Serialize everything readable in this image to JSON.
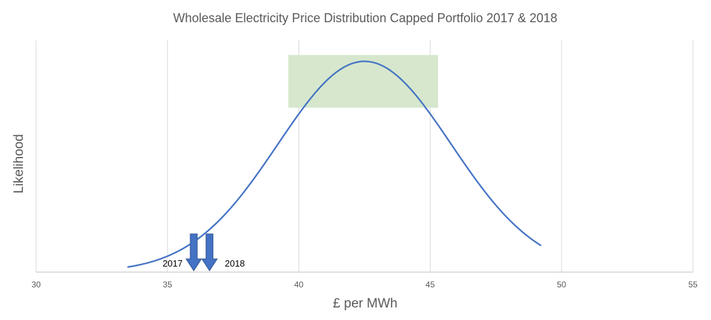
{
  "chart_data": {
    "type": "line",
    "title": "Wholesale Electricity Price Distribution Capped Portfolio 2017 & 2018",
    "xlabel": "£ per MWh",
    "ylabel": "Likelihood",
    "xlim": [
      30,
      55
    ],
    "ylim": [
      0,
      1.1
    ],
    "x_ticks": [
      30,
      35,
      40,
      45,
      50,
      55
    ],
    "x_tick_labels": [
      "30",
      "35",
      "40",
      "45",
      "50",
      "55"
    ],
    "grid": "vertical",
    "legend": "none",
    "series": [
      {
        "color": "#4472c4",
        "distribution": {
          "mean": 42.5,
          "sd": 3.3,
          "x_start": 33.5,
          "x_end": 49.2,
          "peak": 1.0
        }
      }
    ],
    "highlight_band": {
      "x_start": 39.6,
      "x_end": 45.3,
      "y_start": 0.78,
      "y_end": 1.03,
      "color": "#d6e7cd"
    },
    "annotations": [
      {
        "label": "2017",
        "x": 36.0,
        "color": "#4472c4"
      },
      {
        "label": "2018",
        "x": 36.6,
        "color": "#4472c4"
      }
    ]
  }
}
